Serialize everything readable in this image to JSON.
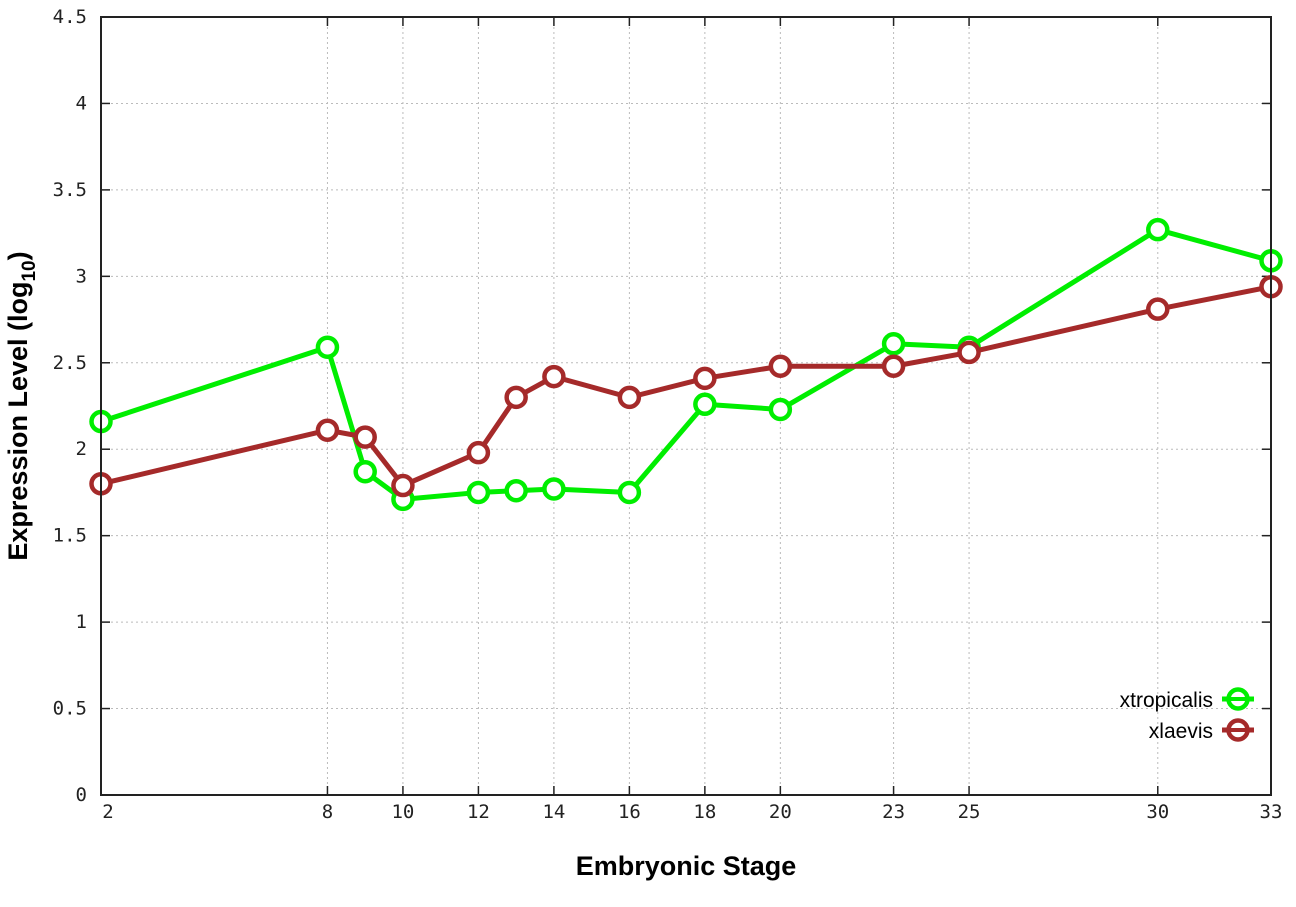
{
  "chart_data": {
    "type": "line",
    "title": "",
    "xlabel": "Embryonic Stage",
    "ylabel": "Expression Level (log",
    "ylabel_subscript": "10",
    "ylabel_close": ")",
    "xlim": [
      2,
      33
    ],
    "ylim": [
      0,
      4.5
    ],
    "x_ticks": [
      2,
      8,
      10,
      12,
      14,
      16,
      18,
      20,
      23,
      25,
      30,
      33
    ],
    "y_ticks": [
      0,
      0.5,
      1,
      1.5,
      2,
      2.5,
      3,
      3.5,
      4,
      4.5
    ],
    "y_tick_labels": [
      "0",
      "0.5",
      "1",
      "1.5",
      "2",
      "2.5",
      "3",
      "3.5",
      "4",
      "4.5"
    ],
    "grid": true,
    "legend_position": "bottom-right",
    "x": [
      2,
      8,
      9,
      10,
      12,
      13,
      14,
      16,
      18,
      20,
      23,
      25,
      30,
      33
    ],
    "series": [
      {
        "name": "xtropicalis",
        "color": "#00ee00",
        "values": [
          2.16,
          2.59,
          1.87,
          1.71,
          1.75,
          1.76,
          1.77,
          1.75,
          2.26,
          2.23,
          2.61,
          2.59,
          3.27,
          3.09
        ]
      },
      {
        "name": "xlaevis",
        "color": "#a52a2a",
        "values": [
          1.8,
          2.11,
          2.07,
          1.79,
          1.98,
          2.3,
          2.42,
          2.3,
          2.41,
          2.48,
          2.48,
          2.56,
          2.81,
          2.94
        ]
      }
    ]
  }
}
